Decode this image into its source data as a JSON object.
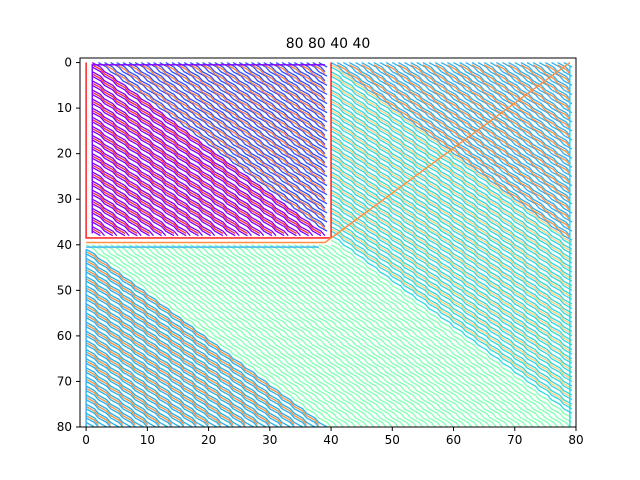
{
  "chart_data": {
    "type": "line",
    "title": "80 80 40 40",
    "xlabel": "",
    "ylabel": "",
    "xlim": [
      -1,
      80
    ],
    "ylim": [
      80,
      -1
    ],
    "y_inverted": true,
    "xticks": [
      0,
      10,
      20,
      30,
      40,
      50,
      60,
      70,
      80
    ],
    "yticks": [
      0,
      10,
      20,
      30,
      40,
      50,
      60,
      70,
      80
    ],
    "grid": false,
    "legend": "none",
    "colormap": "rainbow",
    "colors": {
      "start": "#80ffb4",
      "mid": "#30b0f0",
      "end": "#ff1a00",
      "purple": "#7f00ff"
    },
    "regions": [
      {
        "name": "lower-right-triangle",
        "path_spacing": 1,
        "colors": [
          "#80ffb4",
          "#30d8e0",
          "#ffd080",
          "#30b0f0"
        ]
      },
      {
        "name": "lower-left-band",
        "path_spacing": 1,
        "colors": [
          "#30b0f0",
          "#ff9040",
          "#30d8e0"
        ]
      },
      {
        "name": "upper-left-square",
        "x": [
          0,
          40
        ],
        "y": [
          0,
          40
        ],
        "colors": [
          "#3050ff",
          "#ff3030",
          "#7f00ff",
          "#ff8040"
        ]
      }
    ]
  }
}
